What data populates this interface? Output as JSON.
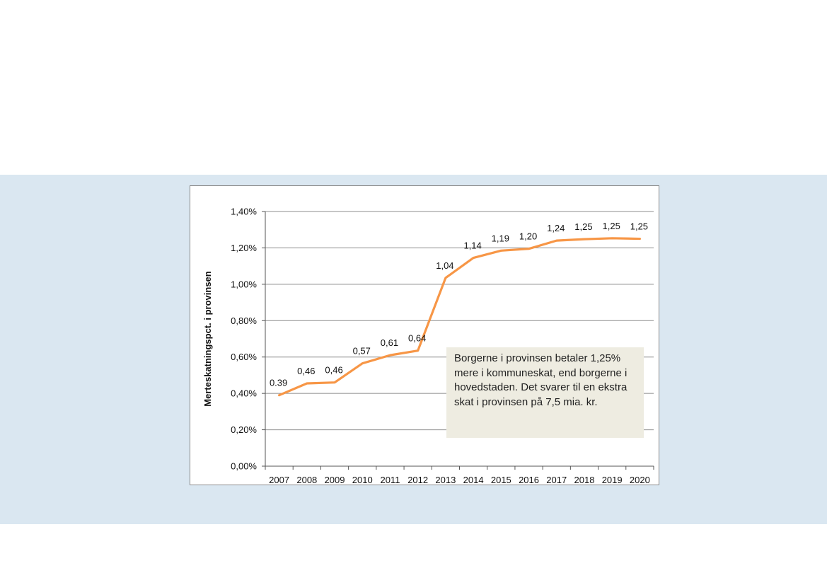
{
  "colors": {
    "band": "#dae7f1",
    "line": "#f79646",
    "grid": "#8c8c8c",
    "callout_bg": "#eeece1"
  },
  "chart_data": {
    "type": "line",
    "ylabel": "Merteskatningspct. i provinsen",
    "xlabel": "",
    "title": "",
    "categories": [
      "2007",
      "2008",
      "2009",
      "2010",
      "2011",
      "2012",
      "2013",
      "2014",
      "2015",
      "2016",
      "2017",
      "2018",
      "2019",
      "2020"
    ],
    "series": [
      {
        "values": [
          0.39,
          0.455,
          0.46,
          0.565,
          0.61,
          0.635,
          1.035,
          1.145,
          1.185,
          1.195,
          1.24,
          1.248,
          1.253,
          1.25
        ]
      }
    ],
    "data_labels": [
      "0.39",
      "0,46",
      "0,46",
      "0,57",
      "0,61",
      "0,64",
      "1,04",
      "1,14",
      "1,19",
      "1,20",
      "1,24",
      "1,25",
      "1,25",
      "1,25"
    ],
    "ylim": [
      0,
      1.4
    ],
    "yticks": [
      0,
      0.2,
      0.4,
      0.6,
      0.8,
      1.0,
      1.2,
      1.4
    ],
    "ytick_labels": [
      "0,00%",
      "0,20%",
      "0,40%",
      "0,60%",
      "0,80%",
      "1,00%",
      "1,20%",
      "1,40%"
    ],
    "grid": true,
    "legend": "none",
    "annotation": "Borgerne i provinsen betaler 1,25% mere  i kommuneskat, end borgerne i hovedstaden. Det svarer til en ekstra skat i provinsen på 7,5 mia. kr."
  }
}
